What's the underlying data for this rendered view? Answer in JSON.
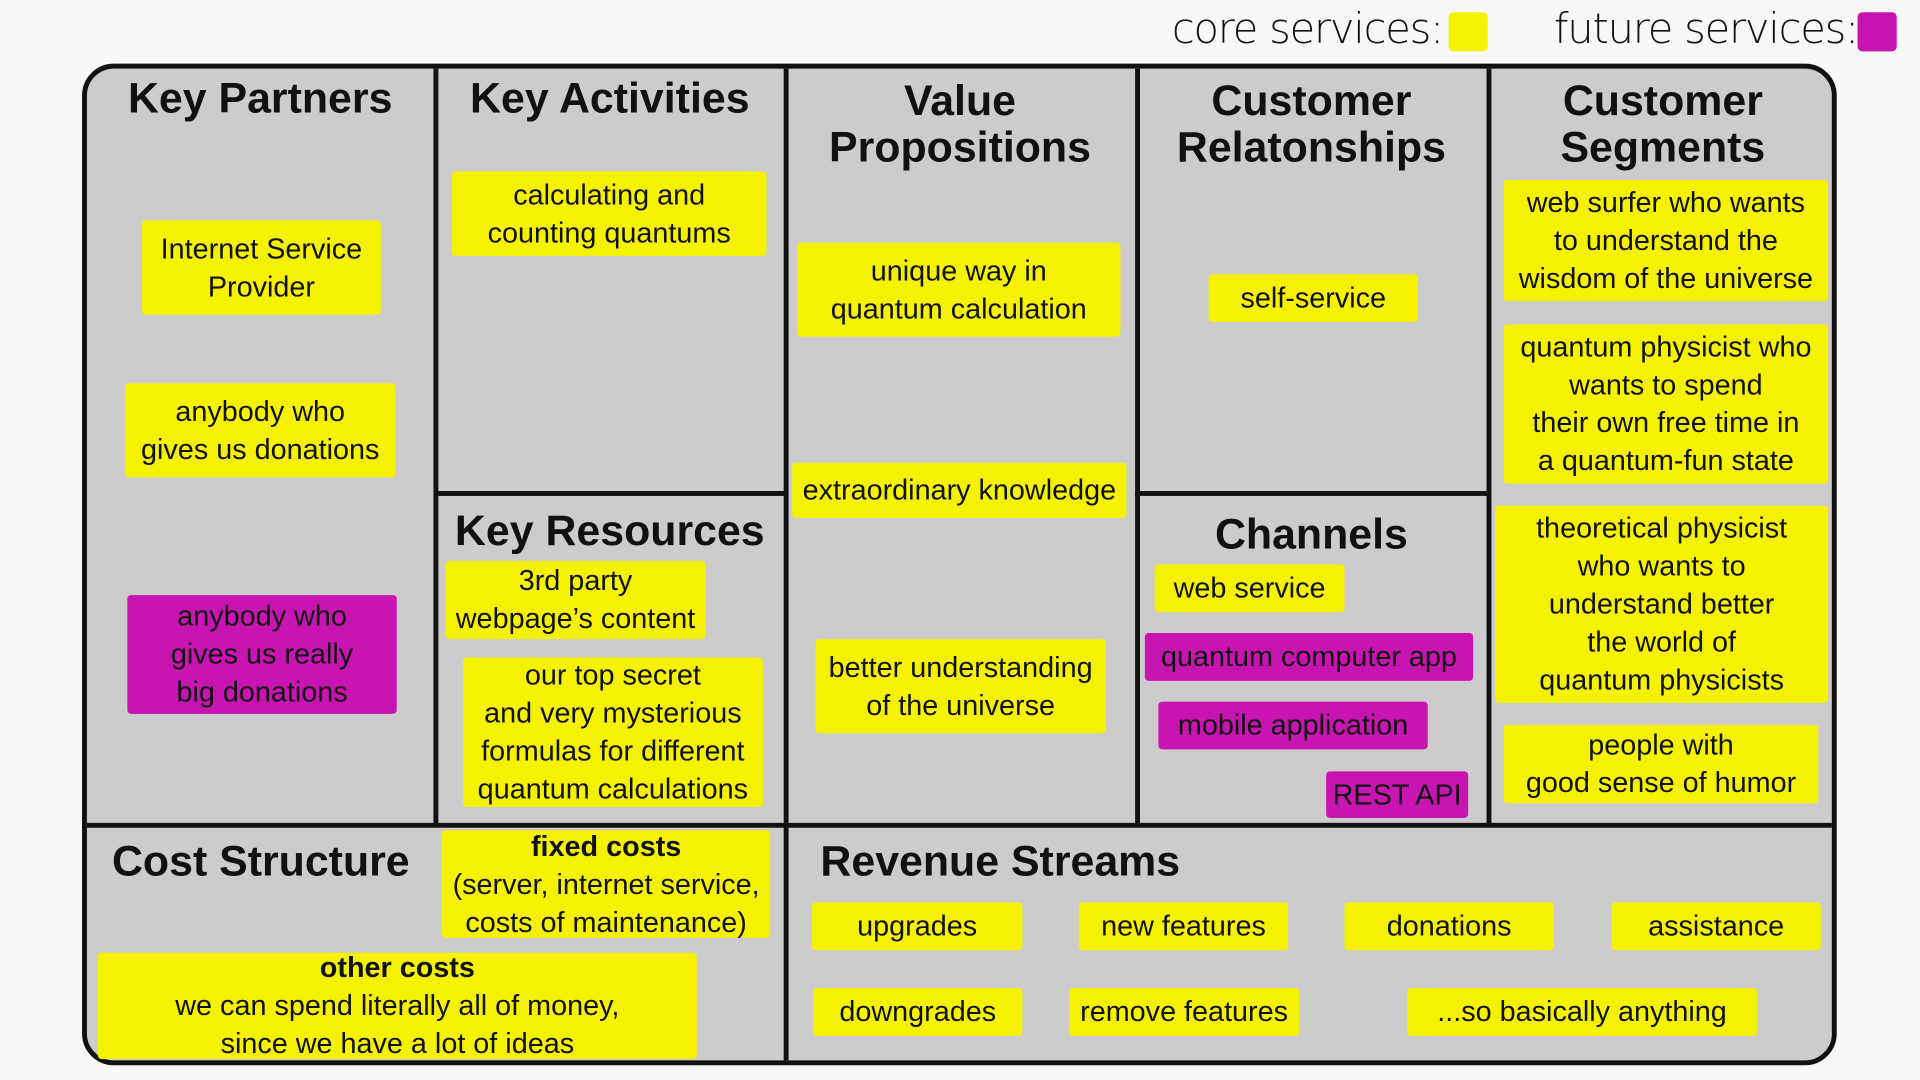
{
  "legend": {
    "core_label": "core services:",
    "core_color": "#f5f200",
    "future_label": "future services:",
    "future_color": "#c814b0"
  },
  "headings": {
    "key_partners": "Key Partners",
    "key_activities": "Key Activities",
    "key_resources": "Key Resources",
    "value_propositions": "Value\nPropositions",
    "customer_relationships": "Customer\nRelatonships",
    "channels": "Channels",
    "customer_segments": "Customer\nSegments",
    "cost_structure": "Cost Structure",
    "revenue_streams": "Revenue Streams"
  },
  "key_partners": [
    "Internet Service\nProvider",
    "anybody who\ngives us donations",
    "anybody who\ngives us really\nbig donations"
  ],
  "key_activities": [
    "calculating and\ncounting quantums"
  ],
  "key_resources": [
    "3rd party\nwebpage’s content",
    "our top secret\nand very mysterious\nformulas for different\nquantum calculations"
  ],
  "value_propositions": [
    "unique way in\nquantum calculation",
    "extraordinary knowledge",
    "better understanding\nof the universe"
  ],
  "customer_relationships": [
    "self-service"
  ],
  "channels": [
    "web service",
    "quantum computer app",
    "mobile application",
    "REST API"
  ],
  "customer_segments": [
    "web surfer who wants\nto understand the\nwisdom of the universe",
    "quantum physicist who\nwants to spend\ntheir own free time in\na quantum-fun state",
    "theoretical physicist\nwho wants to\nunderstand better\nthe world of\nquantum physicists",
    "people with\ngood sense of humor"
  ],
  "cost_structure": {
    "fixed_title": "fixed costs",
    "fixed_text": "(server, internet service,\ncosts of maintenance)",
    "other_title": "other costs",
    "other_text": "we can spend literally all of money,\nsince we have a lot of ideas"
  },
  "revenue_streams": [
    "upgrades",
    "new features",
    "donations",
    "assistance",
    "downgrades",
    "remove features",
    "...so basically anything"
  ]
}
